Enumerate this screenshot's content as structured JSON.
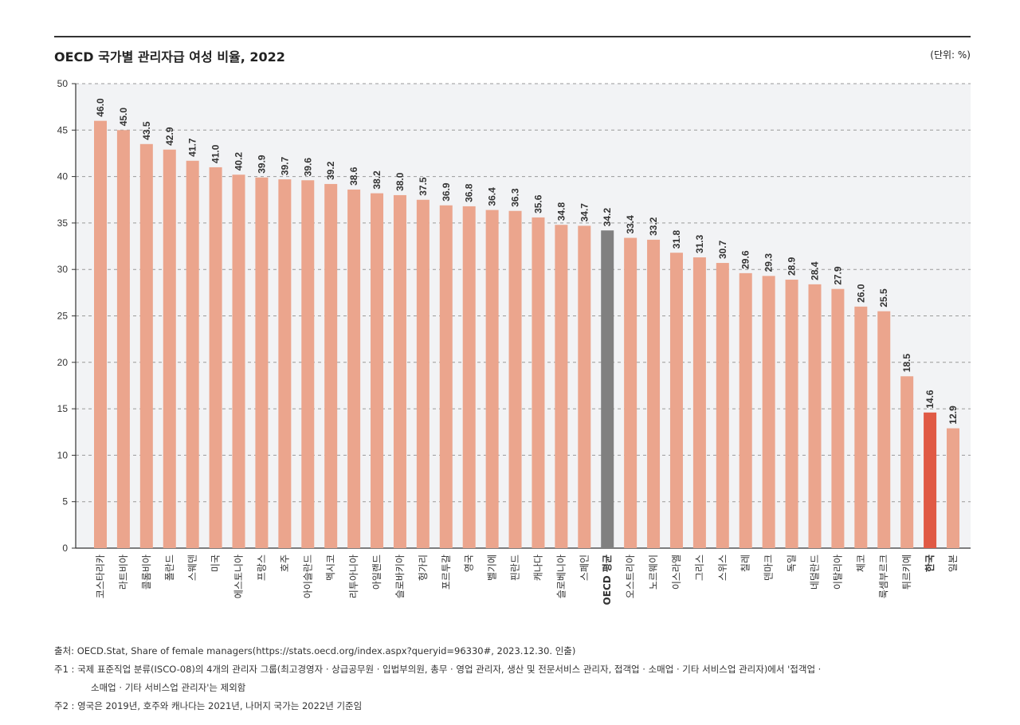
{
  "title": "OECD 국가별 관리자급 여성 비율, 2022",
  "unit": "(단위: %)",
  "colors": {
    "bar": "#eba58d",
    "oecd": "#808080",
    "korea": "#e05a45",
    "plot_bg": "#f2f3f5"
  },
  "chart_data": {
    "type": "bar",
    "title": "OECD 국가별 관리자급 여성 비율, 2022",
    "xlabel": "",
    "ylabel": "",
    "ylim": [
      0,
      50
    ],
    "yticks": [
      0,
      5,
      10,
      15,
      20,
      25,
      30,
      35,
      40,
      45,
      50
    ],
    "grid": true,
    "categories": [
      "코스타리카",
      "라트비아",
      "콜롬비아",
      "폴란드",
      "스웨덴",
      "미국",
      "에스토니아",
      "프랑스",
      "호주",
      "아이슬란드",
      "멕시코",
      "리투아니아",
      "아일랜드",
      "슬로바키아",
      "헝가리",
      "포르투갈",
      "영국",
      "벨기에",
      "핀란드",
      "캐나다",
      "슬로베니아",
      "스페인",
      "OECD 평균",
      "오스트리아",
      "노르웨이",
      "이스라엘",
      "그리스",
      "스위스",
      "칠레",
      "덴마크",
      "독일",
      "네덜란드",
      "이탈리아",
      "체코",
      "룩셈부르크",
      "튀르키예",
      "한국",
      "일본"
    ],
    "values": [
      46.0,
      45.0,
      43.5,
      42.9,
      41.7,
      41.0,
      40.2,
      39.9,
      39.7,
      39.6,
      39.2,
      38.6,
      38.2,
      38.0,
      37.5,
      36.9,
      36.8,
      36.4,
      36.3,
      35.6,
      34.8,
      34.7,
      34.2,
      33.4,
      33.2,
      31.8,
      31.3,
      30.7,
      29.6,
      29.3,
      28.9,
      28.4,
      27.9,
      26.0,
      25.5,
      18.5,
      14.6,
      12.9
    ],
    "highlight": {
      "OECD 평균": "oecd",
      "한국": "korea"
    }
  },
  "notes": {
    "source": "출처: OECD.Stat, Share of female managers(https://stats.oecd.org/index.aspx?queryid=96330#, 2023.12.30. 인출)",
    "note1_line1": "주1 : 국제 표준직업 분류(ISCO-08)의 4개의 관리자 그룹(최고경영자 · 상급공무원 · 입법부의원, 총무 · 영업 관리자, 생산 및 전문서비스 관리자, 접객업 · 소매업 · 기타 서비스업 관리자)에서 '접객업 ·",
    "note1_line2": "소매업 · 기타 서비스업 관리자'는 제외함",
    "note2": "주2 : 영국은 2019년, 호주와 캐나다는 2021년, 나머지 국가는 2022년 기준임"
  }
}
